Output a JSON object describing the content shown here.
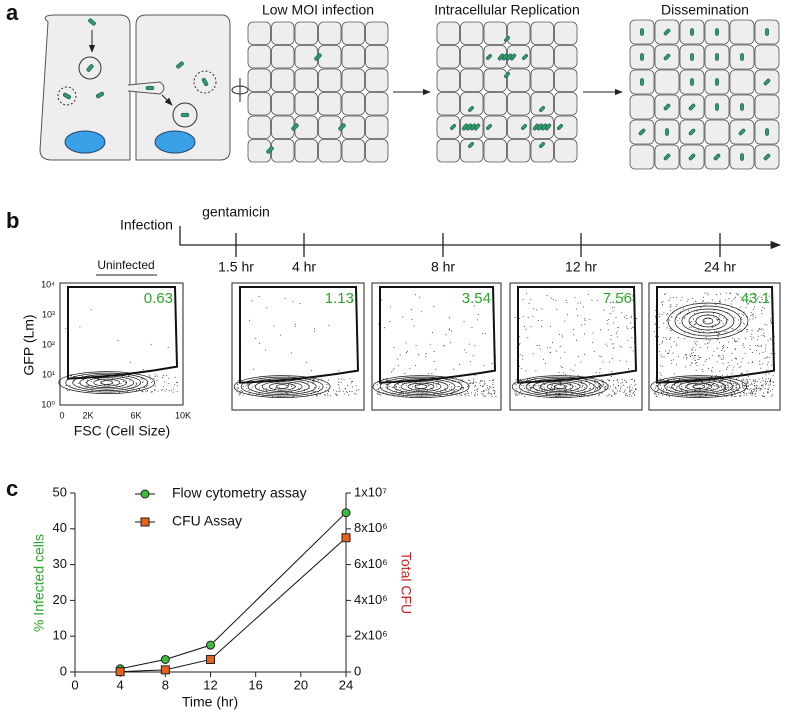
{
  "panel_a": {
    "label": "a",
    "titles": [
      "Low MOI infection",
      "Intracellular Replication",
      "Dissemination"
    ]
  },
  "panel_b": {
    "label": "b",
    "infection": "Infection",
    "gentamicin": "gentamicin",
    "times": [
      "1.5 hr",
      "4 hr",
      "8 hr",
      "12 hr",
      "24 hr"
    ],
    "uninfected": "Uninfected",
    "y_label": "GFP (Lm)",
    "x_label": "FSC (Cell Size)",
    "y_ticks": [
      "10⁴",
      "10³",
      "10²",
      "10¹",
      "10⁰"
    ],
    "x_ticks": [
      "0",
      "2K",
      "6K",
      "10K"
    ],
    "percentages": [
      "0.63",
      "1.13",
      "3.54",
      "7.56",
      "43.1"
    ]
  },
  "chart_data": {
    "type": "line",
    "label": "c",
    "x_label": "Time (hr)",
    "y_label": "% Infected cells",
    "y2_label": "Total CFU",
    "x": [
      4,
      8,
      12,
      24
    ],
    "xlim": [
      0,
      24
    ],
    "xticks": [
      0,
      4,
      8,
      12,
      16,
      20,
      24
    ],
    "ylim": [
      0,
      50
    ],
    "yticks": [
      0,
      10,
      20,
      30,
      40,
      50
    ],
    "y2lim": [
      0,
      10000000
    ],
    "y2ticks": [
      0,
      {
        "value": 2000000,
        "label": "2x10⁶"
      },
      {
        "value": 4000000,
        "label": "4x10⁶"
      },
      {
        "value": 6000000,
        "label": "6x10⁶"
      },
      {
        "value": 8000000,
        "label": "8x10⁶"
      },
      {
        "value": 10000000,
        "label": "1x10⁷"
      }
    ],
    "series": [
      {
        "name": "Flow cytometry assay",
        "color": "#3dbb3d",
        "marker": "circle",
        "values": [
          0.9,
          3.5,
          7.5,
          44.5
        ]
      },
      {
        "name": "CFU Assay",
        "color": "#e8601c",
        "marker": "square",
        "axis": "y2",
        "values": [
          20000,
          120000,
          700000,
          7500000
        ]
      }
    ]
  }
}
